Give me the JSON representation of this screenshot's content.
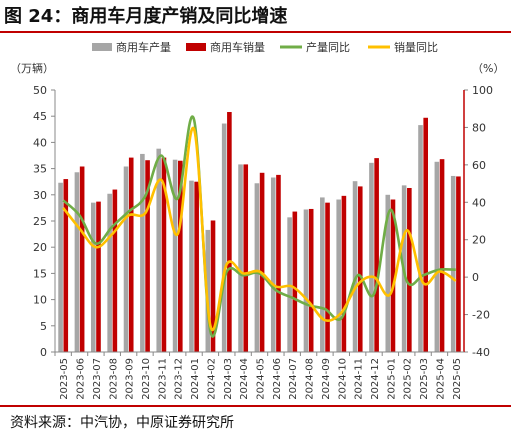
{
  "figure": {
    "title": "图 24：商用车月度产销及同比增速",
    "source": "资料来源：中汽协，中原证券研究所"
  },
  "chart_data": {
    "type": "bar",
    "y_left_label": "（万辆）",
    "y_right_label": "（%）",
    "y_left_range": [
      0,
      50
    ],
    "y_left_ticks": [
      0,
      5,
      10,
      15,
      20,
      25,
      30,
      35,
      40,
      45,
      50
    ],
    "y_right_range": [
      -40,
      100
    ],
    "y_right_ticks": [
      -40,
      -20,
      0,
      20,
      40,
      60,
      80,
      100
    ],
    "legend_position": "top",
    "grid": false,
    "categories": [
      "2023-05",
      "2023-06",
      "2023-07",
      "2023-08",
      "2023-09",
      "2023-10",
      "2023-11",
      "2023-12",
      "2024-01",
      "2024-02",
      "2024-03",
      "2024-04",
      "2024-05",
      "2024-06",
      "2024-07",
      "2024-08",
      "2024-09",
      "2024-10",
      "2024-11",
      "2024-12",
      "2025-01",
      "2025-02",
      "2025-03",
      "2025-04",
      "2025-05"
    ],
    "series": [
      {
        "name": "商用车产量",
        "type": "bar",
        "axis": "left",
        "color": "#a6a6a6",
        "values": [
          32.3,
          34.3,
          28.5,
          30.2,
          35.4,
          37.8,
          38.8,
          36.7,
          32.7,
          23.3,
          43.6,
          35.8,
          32.2,
          33.3,
          25.7,
          27.2,
          29.5,
          29.1,
          32.6,
          36.1,
          30.0,
          31.8,
          43.3,
          36.3,
          33.6
        ]
      },
      {
        "name": "商用车销量",
        "type": "bar",
        "axis": "left",
        "color": "#c00000",
        "values": [
          33.0,
          35.4,
          28.7,
          31.0,
          37.1,
          36.6,
          37.1,
          36.5,
          32.5,
          25.1,
          45.8,
          35.8,
          34.2,
          33.8,
          26.8,
          27.3,
          28.5,
          29.8,
          31.6,
          37.0,
          29.1,
          31.3,
          44.7,
          36.8,
          33.5
        ]
      },
      {
        "name": "产量同比",
        "type": "line",
        "axis": "right",
        "color": "#70ad47",
        "values": [
          41,
          33,
          18,
          27,
          35,
          43,
          65,
          42,
          84,
          -29,
          3,
          1,
          2,
          -7,
          -11,
          -15,
          -17,
          -22,
          1,
          -9,
          36,
          -2,
          1,
          4,
          4
        ]
      },
      {
        "name": "销量同比",
        "type": "line",
        "axis": "right",
        "color": "#ffc000",
        "values": [
          37,
          26,
          16,
          23,
          33,
          34,
          52,
          23,
          79,
          -26,
          7,
          2,
          3,
          -5,
          -5,
          -13,
          -23,
          -19,
          -4,
          0,
          -9,
          25,
          -3,
          3,
          -2
        ]
      }
    ]
  }
}
